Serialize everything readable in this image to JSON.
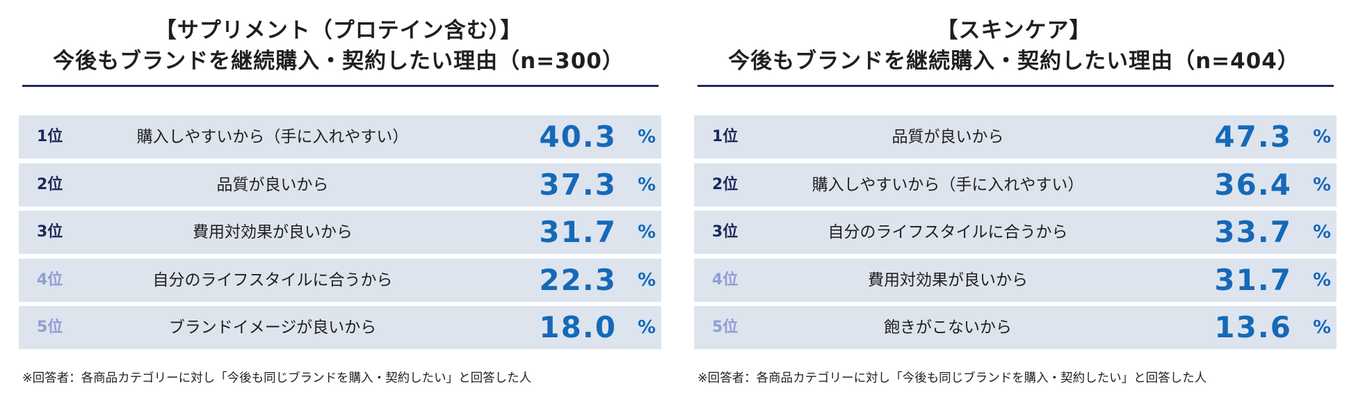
{
  "colors": {
    "value_blue": "#1569b8",
    "rank_dark": "#1b2a5a",
    "rank_light": "#8e9fd2",
    "row_bg": "#dde4ee",
    "rule": "#1f2b57"
  },
  "chart_data": [
    {
      "type": "table",
      "title": "【サプリメント（プロテイン含む）】",
      "subtitle": "今後もブランドを継続購入・契約したい理由（n=300）",
      "unit": "%",
      "rows": [
        {
          "rank": "1位",
          "reason": "購入しやすいから（手に入れやすい）",
          "value": "40.3",
          "rank_style": "dark"
        },
        {
          "rank": "2位",
          "reason": "品質が良いから",
          "value": "37.3",
          "rank_style": "dark"
        },
        {
          "rank": "3位",
          "reason": "費用対効果が良いから",
          "value": "31.7",
          "rank_style": "dark"
        },
        {
          "rank": "4位",
          "reason": "自分のライフスタイルに合うから",
          "value": "22.3",
          "rank_style": "light"
        },
        {
          "rank": "5位",
          "reason": "ブランドイメージが良いから",
          "value": "18.0",
          "rank_style": "light"
        }
      ],
      "footnote": "※回答者：各商品カテゴリーに対し「今後も同じブランドを購入・契約したい」と回答した人"
    },
    {
      "type": "table",
      "title": "【スキンケア】",
      "subtitle": "今後もブランドを継続購入・契約したい理由（n=404）",
      "unit": "%",
      "rows": [
        {
          "rank": "1位",
          "reason": "品質が良いから",
          "value": "47.3",
          "rank_style": "dark"
        },
        {
          "rank": "2位",
          "reason": "購入しやすいから（手に入れやすい）",
          "value": "36.4",
          "rank_style": "dark"
        },
        {
          "rank": "3位",
          "reason": "自分のライフスタイルに合うから",
          "value": "33.7",
          "rank_style": "dark"
        },
        {
          "rank": "4位",
          "reason": "費用対効果が良いから",
          "value": "31.7",
          "rank_style": "light"
        },
        {
          "rank": "5位",
          "reason": "飽きがこないから",
          "value": "13.6",
          "rank_style": "light"
        }
      ],
      "footnote": "※回答者：各商品カテゴリーに対し「今後も同じブランドを購入・契約したい」と回答した人"
    }
  ]
}
